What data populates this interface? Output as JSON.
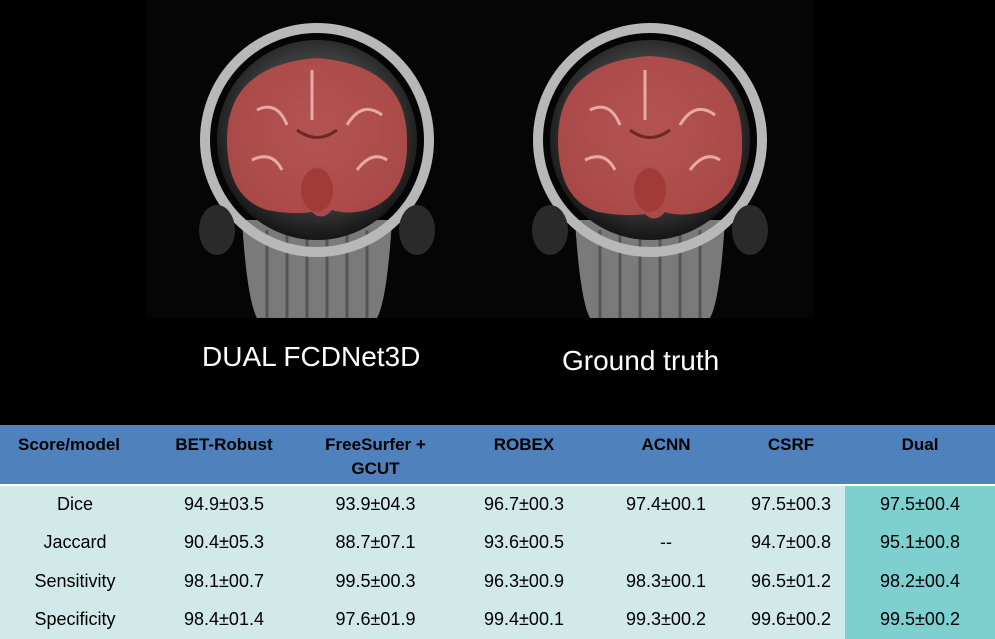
{
  "images": {
    "left_label": "DUAL FCDNet3D",
    "right_label": "Ground truth"
  },
  "table": {
    "headers": [
      "Score/model",
      "BET-Robust",
      "FreeSurfer + GCUT",
      "ROBEX",
      "ACNN",
      "CSRF",
      "Dual"
    ],
    "rows": [
      {
        "metric": "Dice",
        "values": [
          "94.9±03.5",
          "93.9±04.3",
          "96.7±00.3",
          "97.4±00.1",
          "97.5±00.3",
          "97.5±00.4"
        ]
      },
      {
        "metric": "Jaccard",
        "values": [
          "90.4±05.3",
          "88.7±07.1",
          "93.6±00.5",
          "--",
          "94.7±00.8",
          "95.1±00.8"
        ]
      },
      {
        "metric": "Sensitivity",
        "values": [
          "98.1±00.7",
          "99.5±00.3",
          "96.3±00.9",
          "98.3±00.1",
          "96.5±01.2",
          "98.2±00.4"
        ]
      },
      {
        "metric": "Specificity",
        "values": [
          "98.4±01.4",
          "97.6±01.9",
          "99.4±00.1",
          "99.3±00.2",
          "99.6±00.2",
          "99.5±00.2"
        ]
      }
    ]
  },
  "colors": {
    "header_bg": "#4f81bd",
    "row_bg": "#d2e9ea",
    "dual_col_bg": "#7dcfd0",
    "mask_overlay": "#c0504d"
  }
}
